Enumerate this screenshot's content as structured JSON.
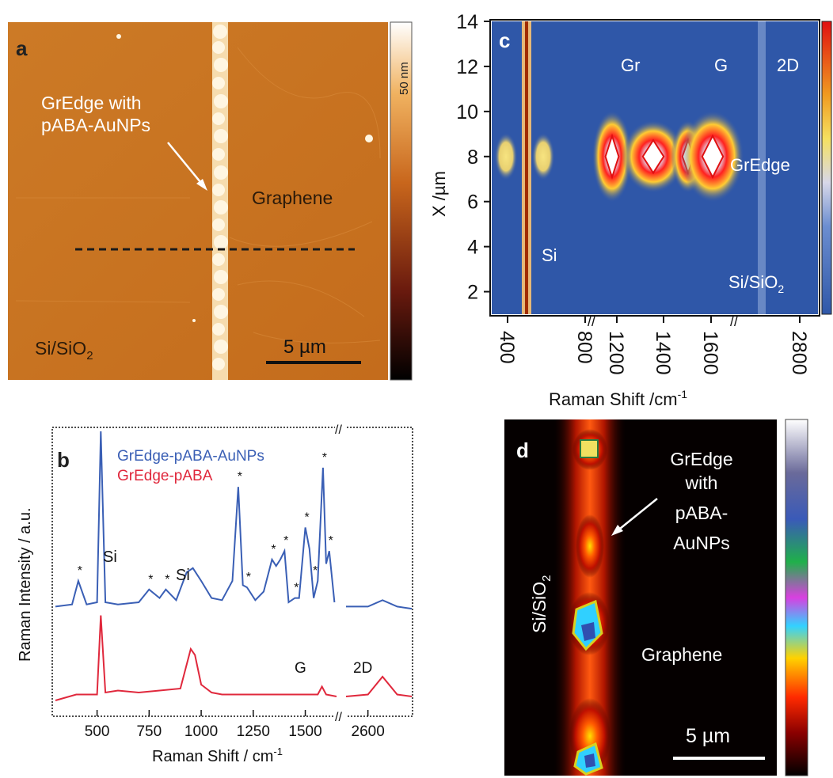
{
  "panel_a": {
    "letter": "a",
    "colorbar_label": "50 nm",
    "annotation_line1": "GrEdge with",
    "annotation_line2": "pABA-AuNPs",
    "region_graphene": "Graphene",
    "region_substrate": "Si/SiO",
    "region_substrate_sub": "2",
    "scalebar": "5 µm"
  },
  "panel_b": {
    "letter": "b",
    "ylabel": "Raman Intensity / a.u.",
    "xlabel": "Raman Shift / cm",
    "xlabel_sup": "-1",
    "legend_series1": "GrEdge-pABA-AuNPs",
    "legend_series2": "GrEdge-pABA",
    "peak_si_1": "Si",
    "peak_si_2": "Si",
    "peak_g": "G",
    "peak_2d": "2D",
    "star": "*"
  },
  "panel_c": {
    "letter": "c",
    "ylabel": "X /µm",
    "xlabel": "Raman Shift /cm",
    "xlabel_sup": "-1",
    "label_gr": "Gr",
    "label_g": "G",
    "label_2d": "2D",
    "label_gredge": "GrEdge",
    "label_si": "Si",
    "label_sisio": "Si/SiO",
    "label_sisio_sub": "2"
  },
  "panel_d": {
    "letter": "d",
    "annotation_lines": [
      "GrEdge",
      "with",
      "pABA-",
      "AuNPs"
    ],
    "region_substrate": "Si/SiO",
    "region_substrate_sub": "2",
    "region_graphene": "Graphene",
    "scalebar": "5 µm"
  },
  "colors": {
    "series1": "#3a5fb5",
    "series2": "#e0283c",
    "afm_bg": "#c9731f",
    "map_bg": "#2f57a8"
  },
  "chart_data": [
    {
      "type": "line",
      "panel": "b",
      "x_segments": [
        [
          300,
          1650
        ],
        [
          2450,
          2900
        ]
      ],
      "xticks": [
        "500",
        "750",
        "1000",
        "1250",
        "1500",
        "2600"
      ],
      "series": [
        {
          "name": "GrEdge-pABA-AuNPs",
          "x": [
            300,
            380,
            410,
            450,
            500,
            518,
            540,
            600,
            700,
            750,
            800,
            830,
            880,
            930,
            960,
            1000,
            1050,
            1100,
            1150,
            1178,
            1200,
            1220,
            1260,
            1300,
            1340,
            1360,
            1380,
            1400,
            1420,
            1450,
            1470,
            1500,
            1520,
            1540,
            1560,
            1585,
            1600,
            1615,
            1640,
            2450,
            2600,
            2700,
            2800,
            2900
          ],
          "y": [
            0.18,
            0.19,
            0.3,
            0.19,
            0.2,
            1.0,
            0.2,
            0.19,
            0.2,
            0.26,
            0.22,
            0.26,
            0.21,
            0.34,
            0.36,
            0.3,
            0.22,
            0.21,
            0.3,
            0.74,
            0.28,
            0.27,
            0.21,
            0.25,
            0.4,
            0.37,
            0.4,
            0.44,
            0.2,
            0.22,
            0.22,
            0.55,
            0.45,
            0.22,
            0.3,
            0.83,
            0.38,
            0.44,
            0.2,
            0.18,
            0.18,
            0.21,
            0.18,
            0.17
          ]
        },
        {
          "name": "GrEdge-pABA",
          "x": [
            300,
            400,
            500,
            518,
            540,
            600,
            700,
            800,
            900,
            950,
            970,
            1000,
            1050,
            1100,
            1200,
            1300,
            1400,
            1500,
            1560,
            1580,
            1600,
            1650,
            2450,
            2600,
            2700,
            2800,
            2900
          ],
          "y": [
            0.02,
            0.05,
            0.05,
            0.45,
            0.06,
            0.07,
            0.06,
            0.07,
            0.08,
            0.28,
            0.25,
            0.1,
            0.06,
            0.05,
            0.05,
            0.05,
            0.05,
            0.05,
            0.05,
            0.09,
            0.05,
            0.04,
            0.04,
            0.05,
            0.14,
            0.05,
            0.04
          ]
        }
      ]
    },
    {
      "type": "heatmap",
      "panel": "c",
      "xticks": [
        "400",
        "800",
        "1200",
        "1400",
        "1600",
        "2800"
      ],
      "yticks": [
        "2",
        "4",
        "6",
        "8",
        "10",
        "12",
        "14"
      ],
      "ylim": [
        1,
        14
      ],
      "hotspots_cm": [
        [
          430,
          8
        ],
        [
          580,
          8
        ],
        [
          1180,
          8
        ],
        [
          1350,
          8
        ],
        [
          1500,
          8
        ],
        [
          1600,
          8
        ]
      ]
    }
  ]
}
